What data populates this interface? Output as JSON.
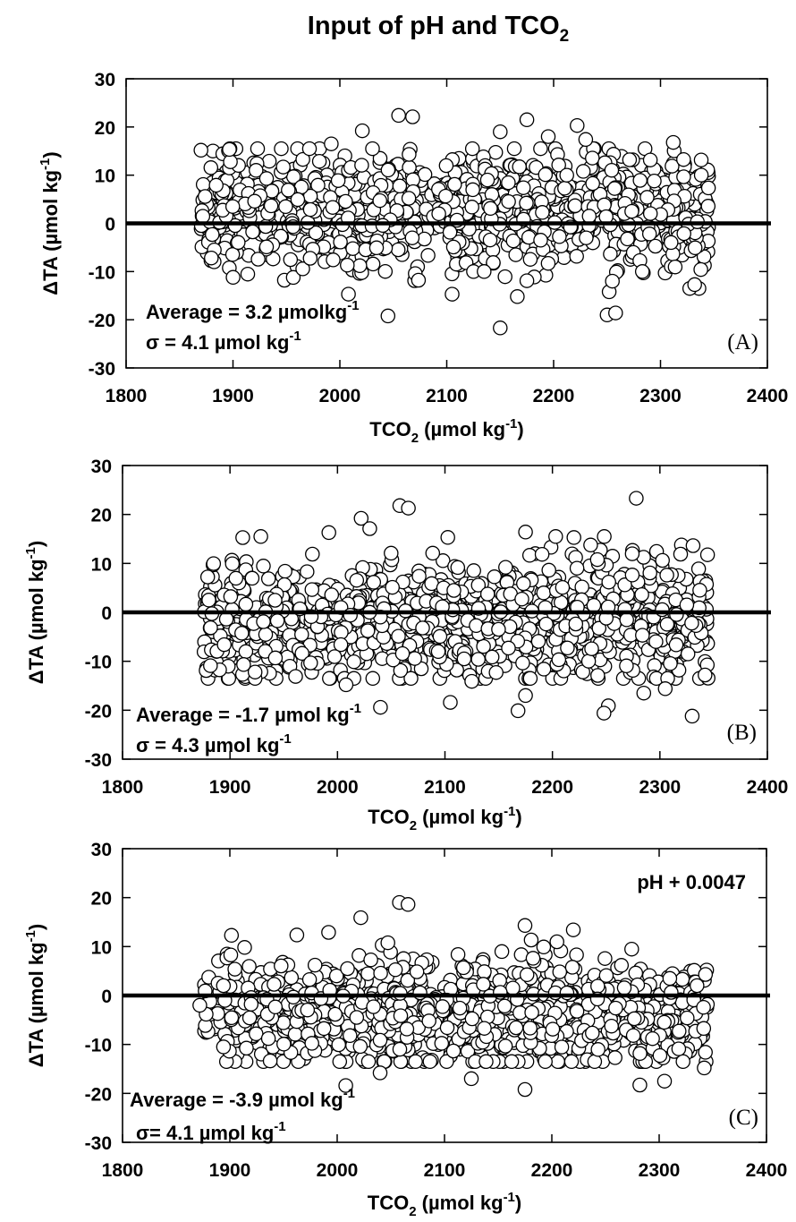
{
  "figure": {
    "title": {
      "main": "Input of pH and TCO",
      "sub": "2"
    }
  },
  "chart_data": [
    {
      "type": "scatter",
      "panel_label": "(A)",
      "xlabel": {
        "pre": "TCO",
        "sub": "2",
        "mid": " (µmol kg",
        "sup": "-1",
        "post": ")"
      },
      "ylabel": {
        "pre": "ΔTA (µmol kg",
        "sup": "-1",
        "post": ")"
      },
      "xlim": [
        1800,
        2400
      ],
      "xticks": [
        1800,
        1900,
        2000,
        2100,
        2200,
        2300,
        2400
      ],
      "ylim": [
        -30,
        30
      ],
      "yticks": [
        -30,
        -20,
        -10,
        0,
        10,
        20,
        30
      ],
      "zero_line": true,
      "stats": {
        "average": {
          "pre": "Average = 3.2 µmolkg",
          "sup": "-1"
        },
        "sigma": {
          "pre": "σ = 4.1 µmol kg",
          "sup": "-1"
        }
      },
      "annotation": "",
      "cloud": {
        "x_range": [
          1870,
          2345
        ],
        "mean": 3.2,
        "sd": 7.0,
        "n": 1150,
        "seed": 11
      },
      "points": [
        {
          "x": 2055,
          "y": 22.4
        },
        {
          "x": 2068,
          "y": 22.1
        },
        {
          "x": 2175,
          "y": 21.5
        },
        {
          "x": 2222,
          "y": 20.3
        },
        {
          "x": 2021,
          "y": 19.2
        },
        {
          "x": 2150,
          "y": 19.0
        },
        {
          "x": 2195,
          "y": 18.0
        },
        {
          "x": 2230,
          "y": 17.4
        },
        {
          "x": 2312,
          "y": 16.8
        },
        {
          "x": 1992,
          "y": 16.5
        },
        {
          "x": 2008,
          "y": -14.7
        },
        {
          "x": 2105,
          "y": -14.7
        },
        {
          "x": 2166,
          "y": -15.2
        },
        {
          "x": 2175,
          "y": -11.9
        },
        {
          "x": 2125,
          "y": -10.0
        },
        {
          "x": 2135,
          "y": -10.0
        },
        {
          "x": 2252,
          "y": -14.2
        },
        {
          "x": 2255,
          "y": -12.0
        },
        {
          "x": 2250,
          "y": -19.0
        },
        {
          "x": 2258,
          "y": -18.6
        },
        {
          "x": 2150,
          "y": -21.7
        },
        {
          "x": 2332,
          "y": -12.7
        },
        {
          "x": 2045,
          "y": -19.2
        },
        {
          "x": 2283,
          "y": -10.0
        }
      ]
    },
    {
      "type": "scatter",
      "panel_label": "(B)",
      "xlabel": {
        "pre": "TCO",
        "sub": "2",
        "mid": " (µmol kg",
        "sup": "-1",
        "post": ")"
      },
      "ylabel": {
        "pre": "ΔTA (µmol kg",
        "sup": "-1",
        "post": ")"
      },
      "xlim": [
        1800,
        2400
      ],
      "xticks": [
        1800,
        1900,
        2000,
        2100,
        2200,
        2300,
        2400
      ],
      "ylim": [
        -30,
        30
      ],
      "yticks": [
        -30,
        -20,
        -10,
        0,
        10,
        20,
        30
      ],
      "zero_line": true,
      "stats": {
        "average": {
          "pre": "Average = -1.7 µmol kg",
          "sup": "-1"
        },
        "sigma": {
          "pre": "σ = 4.3  µmol kg",
          "sup": "-1"
        }
      },
      "annotation": "",
      "cloud": {
        "x_range": [
          1875,
          2345
        ],
        "mean": -1.7,
        "sd": 7.0,
        "n": 1200,
        "seed": 23
      },
      "points": [
        {
          "x": 2058,
          "y": 21.8
        },
        {
          "x": 2066,
          "y": 21.3
        },
        {
          "x": 2278,
          "y": 23.3
        },
        {
          "x": 2022,
          "y": 19.2
        },
        {
          "x": 2030,
          "y": 17.1
        },
        {
          "x": 2175,
          "y": 16.4
        },
        {
          "x": 1992,
          "y": 16.3
        },
        {
          "x": 2220,
          "y": 15.3
        },
        {
          "x": 2008,
          "y": -14.8
        },
        {
          "x": 2105,
          "y": -18.4
        },
        {
          "x": 2040,
          "y": -19.4
        },
        {
          "x": 2168,
          "y": -20.1
        },
        {
          "x": 2175,
          "y": -17.0
        },
        {
          "x": 2252,
          "y": -19.1
        },
        {
          "x": 2248,
          "y": -20.6
        },
        {
          "x": 2285,
          "y": -16.5
        },
        {
          "x": 2305,
          "y": -15.6
        },
        {
          "x": 2330,
          "y": -21.2
        },
        {
          "x": 2342,
          "y": -12.8
        },
        {
          "x": 2125,
          "y": -14.1
        }
      ]
    },
    {
      "type": "scatter",
      "panel_label": "(C)",
      "xlabel": {
        "pre": "TCO",
        "sub": "2",
        "mid": " (µmol kg",
        "sup": "-1",
        "post": ")"
      },
      "ylabel": {
        "pre": "ΔTA (µmol kg",
        "sup": "-1",
        "post": ")"
      },
      "xlim": [
        1800,
        2400
      ],
      "xticks": [
        1800,
        1900,
        2000,
        2100,
        2200,
        2300,
        2400
      ],
      "ylim": [
        -30,
        30
      ],
      "yticks": [
        -30,
        -20,
        -10,
        0,
        10,
        20,
        30
      ],
      "zero_line": true,
      "stats": {
        "average": {
          "pre": "Average = -3.9 µmol kg",
          "sup": "-1"
        },
        "sigma": {
          "pre": "σ= 4.1  µmol kg",
          "sup": "-1"
        }
      },
      "annotation": "pH + 0.0047",
      "cloud": {
        "x_range": [
          1875,
          2345
        ],
        "mean": -3.9,
        "sd": 6.3,
        "n": 1150,
        "seed": 37
      },
      "points": [
        {
          "x": 2058,
          "y": 19.0
        },
        {
          "x": 2066,
          "y": 18.6
        },
        {
          "x": 2175,
          "y": 14.3
        },
        {
          "x": 2220,
          "y": 13.4
        },
        {
          "x": 2022,
          "y": 15.9
        },
        {
          "x": 1992,
          "y": 12.9
        },
        {
          "x": 2008,
          "y": -18.4
        },
        {
          "x": 2175,
          "y": -19.2
        },
        {
          "x": 2282,
          "y": -18.3
        },
        {
          "x": 2305,
          "y": -17.5
        },
        {
          "x": 2125,
          "y": -17.0
        },
        {
          "x": 1872,
          "y": -2.0
        },
        {
          "x": 2342,
          "y": -14.8
        },
        {
          "x": 2040,
          "y": -15.8
        }
      ]
    }
  ]
}
